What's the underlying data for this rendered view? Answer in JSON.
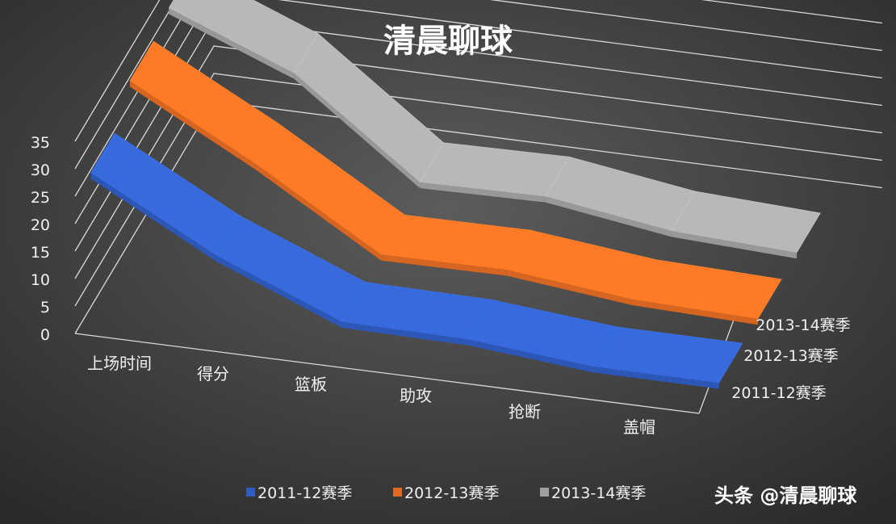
{
  "chart_data": {
    "type": "line",
    "title": "清晨聊球",
    "categories": [
      "上场时间",
      "得分",
      "篮板",
      "助攻",
      "抢断",
      "盖帽"
    ],
    "y_ticks": [
      "0",
      "5",
      "10",
      "15",
      "20",
      "25",
      "30",
      "35"
    ],
    "ylim": [
      0,
      35
    ],
    "grid": true,
    "legend_position": "bottom",
    "series": [
      {
        "name": "2011-12赛季",
        "color": "#2f5cc0",
        "values": [
          24.4,
          12.3,
          3.2,
          3.0,
          1.0,
          1.0
        ]
      },
      {
        "name": "2012-13赛季",
        "color": "#e06a22",
        "values": [
          29.3,
          17.2,
          3.6,
          3.8,
          1.4,
          0.8
        ]
      },
      {
        "name": "2013-14赛季",
        "color": "#a0a0a0",
        "values": [
          30.7,
          21.8,
          4.9,
          5.3,
          2.0,
          1.0
        ]
      }
    ]
  },
  "watermark": "头条 @清晨聊球"
}
